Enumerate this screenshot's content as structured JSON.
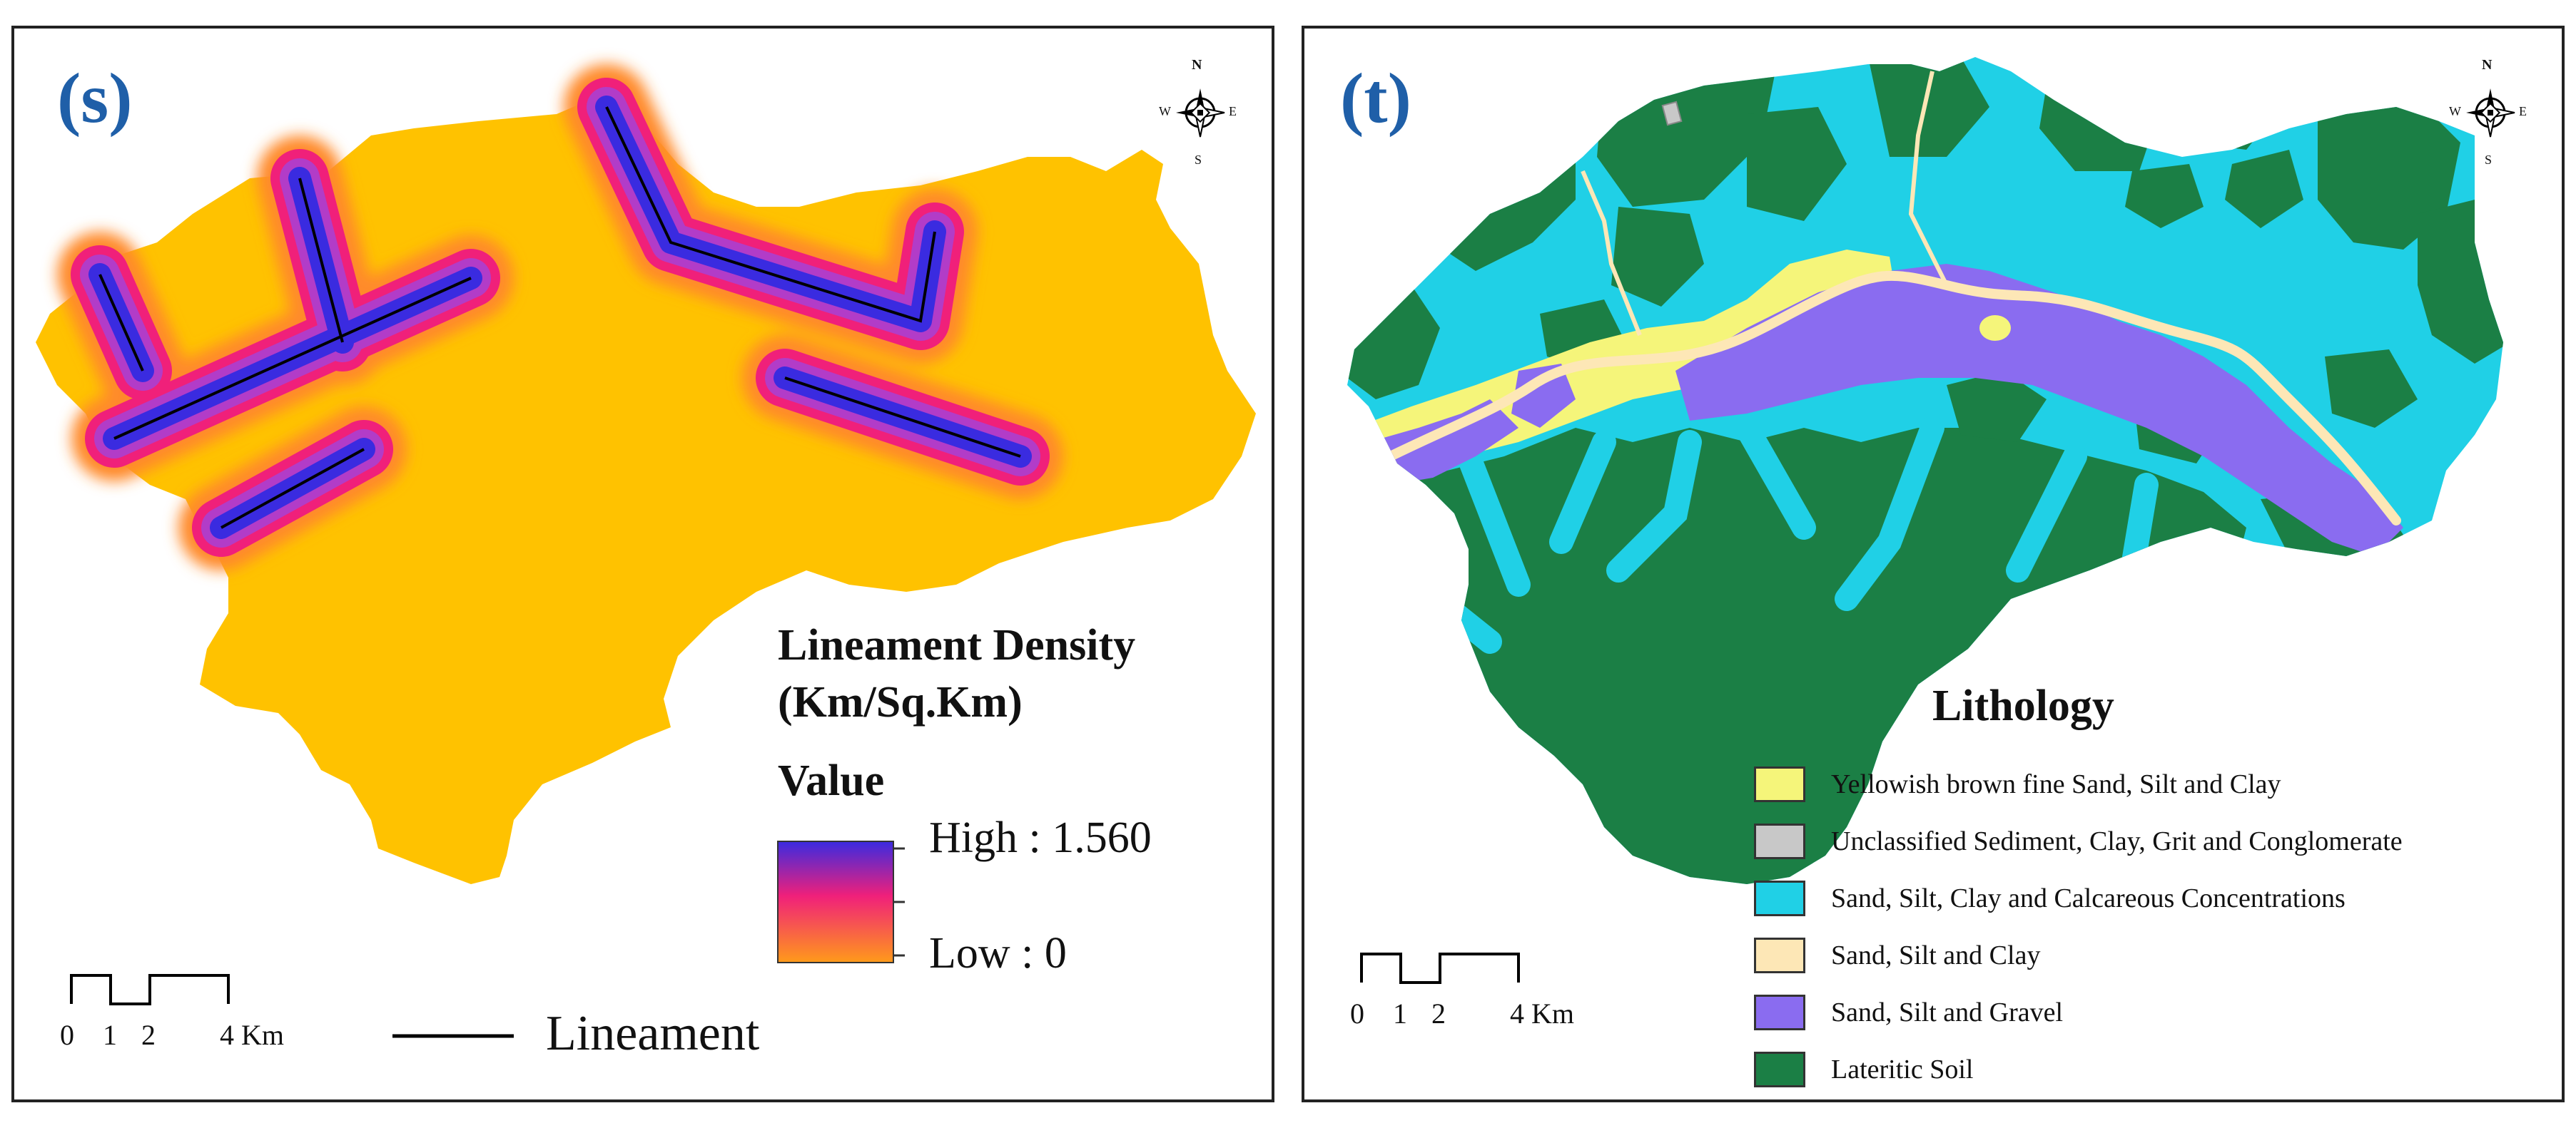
{
  "panels": {
    "s": {
      "tag": "(s)",
      "legend": {
        "title_line1": "Lineament Density",
        "title_line2": "(Km/Sq.Km)",
        "value_label": "Value",
        "high_label": "High : 1.560",
        "low_label": "Low : 0",
        "line_label": "Lineament"
      },
      "scalebar": {
        "ticks": [
          "0",
          "1",
          "2",
          "4 Km"
        ]
      },
      "compass": {
        "n": "N",
        "s": "S",
        "e": "E",
        "w": "W"
      },
      "colors": {
        "base": "#ffc200",
        "high": "#3a2be0",
        "mid": "#f0207a",
        "low": "#ff9a1a",
        "line": "#000000"
      },
      "density_range": {
        "min": 0,
        "max": 1.56,
        "units": "Km/Sq.Km"
      }
    },
    "t": {
      "tag": "(t)",
      "legend": {
        "title": "Lithology",
        "items": [
          {
            "label": "Yellowish brown fine Sand, Silt and Clay",
            "color": "#f5f57a"
          },
          {
            "label": "Unclassified Sediment, Clay, Grit and Conglomerate",
            "color": "#c8c8c8"
          },
          {
            "label": "Sand, Silt, Clay and Calcareous Concentrations",
            "color": "#20d0e6"
          },
          {
            "label": "Sand, Silt and Clay",
            "color": "#fde7b6"
          },
          {
            "label": "Sand, Silt and Gravel",
            "color": "#8a6cf0"
          },
          {
            "label": "Lateritic Soil",
            "color": "#1b7f45"
          }
        ]
      },
      "scalebar": {
        "ticks": [
          "0",
          "1",
          "2",
          "4 Km"
        ]
      },
      "compass": {
        "n": "N",
        "s": "S",
        "e": "E",
        "w": "W"
      }
    }
  }
}
